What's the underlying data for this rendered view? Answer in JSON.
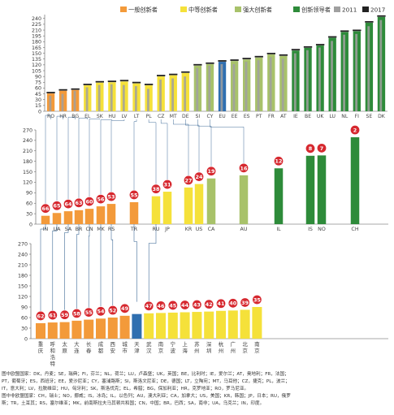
{
  "chart_data": [
    {
      "type": "bar",
      "title": "",
      "legend": {
        "placement": "top",
        "items": [
          {
            "key": "modest",
            "label": "一般创新者",
            "color": "#f39a3a"
          },
          {
            "key": "moderate",
            "label": "中等创新者",
            "color": "#f5e13a"
          },
          {
            "key": "strong",
            "label": "强大创新者",
            "color": "#a8c26a"
          },
          {
            "key": "leader",
            "label": "创新领导者",
            "color": "#2e8b3a"
          },
          {
            "key": "y2011",
            "label": "2011",
            "color": "#a0a0a0"
          },
          {
            "key": "y2017",
            "label": "2017",
            "color": "#222222"
          }
        ]
      },
      "y_ticks": [
        "0",
        "15",
        "30",
        "45",
        "60",
        "75",
        "90",
        "105",
        "120",
        "135",
        "150",
        "165",
        "180",
        "195",
        "210",
        "225",
        "240"
      ],
      "ylim": [
        0,
        250
      ],
      "categories": [
        "RO",
        "HR",
        "BG",
        "EL",
        "SK",
        "HU",
        "LV",
        "LT",
        "PL",
        "CZ",
        "MT",
        "DE",
        "SI",
        "CY",
        "EU",
        "EE",
        "ES",
        "PT",
        "FR",
        "AT",
        "IE",
        "BE",
        "UK",
        "LU",
        "NL",
        "FI",
        "SE",
        "DK"
      ],
      "values": [
        46,
        53,
        55,
        67,
        74,
        75,
        77,
        72,
        67,
        90,
        93,
        99,
        118,
        122,
        128,
        130,
        134,
        139,
        147,
        143,
        157,
        164,
        170,
        190,
        205,
        207,
        229,
        244
      ],
      "values_2011": [
        40,
        45,
        53,
        62,
        68,
        70,
        68,
        65,
        58,
        82,
        85,
        90,
        112,
        118,
        122,
        122,
        128,
        132,
        140,
        136,
        150,
        158,
        165,
        182,
        198,
        200,
        220,
        236
      ],
      "groups": [
        "modest",
        "modest",
        "modest",
        "moderate",
        "moderate",
        "moderate",
        "moderate",
        "moderate",
        "moderate",
        "moderate",
        "moderate",
        "moderate",
        "strong",
        "strong",
        "eu",
        "strong",
        "strong",
        "strong",
        "strong",
        "strong",
        "leader",
        "leader",
        "leader",
        "leader",
        "leader",
        "leader",
        "leader",
        "leader"
      ],
      "eu_color": "#2f6fb0"
    },
    {
      "type": "bar",
      "y_ticks": [
        "0",
        "30",
        "60",
        "90",
        "120",
        "150",
        "180",
        "210",
        "240",
        "270"
      ],
      "ylim": [
        0,
        270
      ],
      "categories": [
        "IN",
        "UA",
        "SA",
        "BR",
        "CN",
        "MK",
        "RS",
        "TR",
        "RU",
        "JP",
        "KR",
        "US",
        "CA",
        "AU",
        "IL",
        "IS",
        "NO",
        "CH"
      ],
      "values": [
        24,
        32,
        37,
        40,
        44,
        51,
        58,
        63,
        80,
        93,
        105,
        115,
        131,
        140,
        160,
        196,
        197,
        249
      ],
      "ranks": [
        "66",
        "65",
        "64",
        "63",
        "60",
        "56",
        "53",
        "55",
        "38",
        "31",
        "27",
        "24",
        "19",
        "16",
        "12",
        "8",
        "7",
        "2"
      ],
      "groups": [
        "modest",
        "modest",
        "modest",
        "modest",
        "modest",
        "modest",
        "modest",
        "modest",
        "moderate",
        "moderate",
        "moderate",
        "moderate",
        "strong",
        "strong",
        "leader",
        "leader",
        "leader",
        "leader"
      ]
    },
    {
      "type": "bar",
      "y_ticks": [
        "0",
        "30",
        "60",
        "90",
        "120",
        "150",
        "180",
        "210",
        "240",
        "270"
      ],
      "ylim": [
        0,
        270
      ],
      "categories": [
        "重庆",
        "呼和浩特",
        "太原",
        "大连",
        "长春",
        "成都",
        "西安",
        "城市",
        "天津",
        "武汉",
        "南京",
        "宁波",
        "上海",
        "苏州",
        "深圳",
        "杭州",
        "广州",
        "北京",
        "南京"
      ],
      "values": [
        44,
        46,
        47,
        51,
        54,
        57,
        60,
        65,
        70,
        72,
        73,
        74,
        75,
        76,
        77,
        79,
        80,
        82,
        90
      ],
      "ranks": [
        "62",
        "61",
        "59",
        "58",
        "55",
        "54",
        "52",
        "49",
        "",
        "47",
        "46",
        "45",
        "44",
        "43",
        "42",
        "41",
        "40",
        "39",
        "35"
      ],
      "groups": [
        "modest",
        "modest",
        "modest",
        "modest",
        "modest",
        "modest",
        "modest",
        "modest",
        "eu",
        "moderate",
        "moderate",
        "moderate",
        "moderate",
        "moderate",
        "moderate",
        "moderate",
        "moderate",
        "moderate",
        "moderate"
      ]
    }
  ],
  "notes": [
    "图中欧盟国家：DK，丹麦；SE，瑞典；FI，芬兰；NL，荷兰；LU，卢森堡；UK，英国；BE，比利时；IE，爱尔兰；AT，奥地利；FR，法国；",
    "PT，葡萄牙；ES，西班牙；EE，爱沙尼亚；CY，塞浦路斯；SI，斯洛文尼亚；DE，德国；LT，立陶宛；MT，马耳他；CZ，捷克；PL，波兰；",
    "IT，意大利；LV，拉脱维亚；HU，匈牙利；SK，斯洛伐克；EL，希腊；BG，保加利亚；HR，克罗地亚；RO，罗马尼亚。",
    "图中非欧盟国家：CH，瑞士；NO，挪威；IS，冰岛；IL，以色列；AU，澳大利亚；CA，加拿大；US，美国；KR，韩国；JP，日本；RU，俄罗",
    "斯；TR，土耳其；RS，塞尔维亚；MK，前南斯拉夫马其顿共和国；CN，中国；BR，巴西；SA，南非；UA，乌克兰；IN，印度。"
  ]
}
